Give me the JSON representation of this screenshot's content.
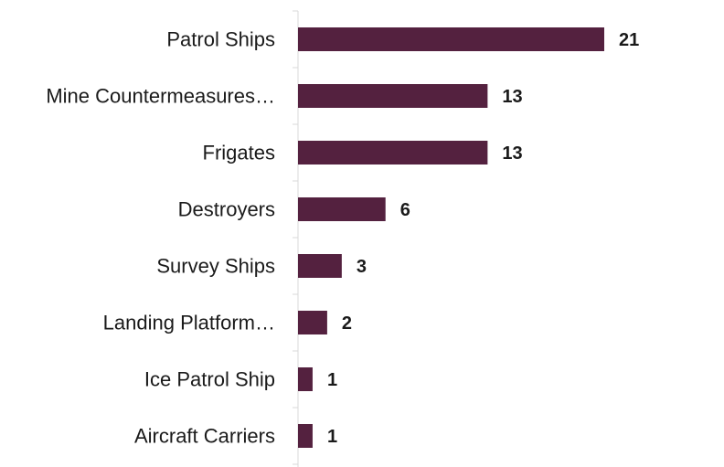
{
  "chart_data": {
    "type": "bar",
    "orientation": "horizontal",
    "categories": [
      "Patrol Ships",
      "Mine Countermeasures…",
      "Frigates",
      "Destroyers",
      "Survey Ships",
      "Landing Platform…",
      "Ice Patrol Ship",
      "Aircraft Carriers"
    ],
    "values": [
      21,
      13,
      13,
      6,
      3,
      2,
      1,
      1
    ],
    "title": "",
    "xlabel": "",
    "ylabel": "",
    "xlim": [
      0,
      21
    ],
    "grid": false,
    "legend": "none",
    "data_labels": true,
    "bar_color": "#54213f"
  }
}
